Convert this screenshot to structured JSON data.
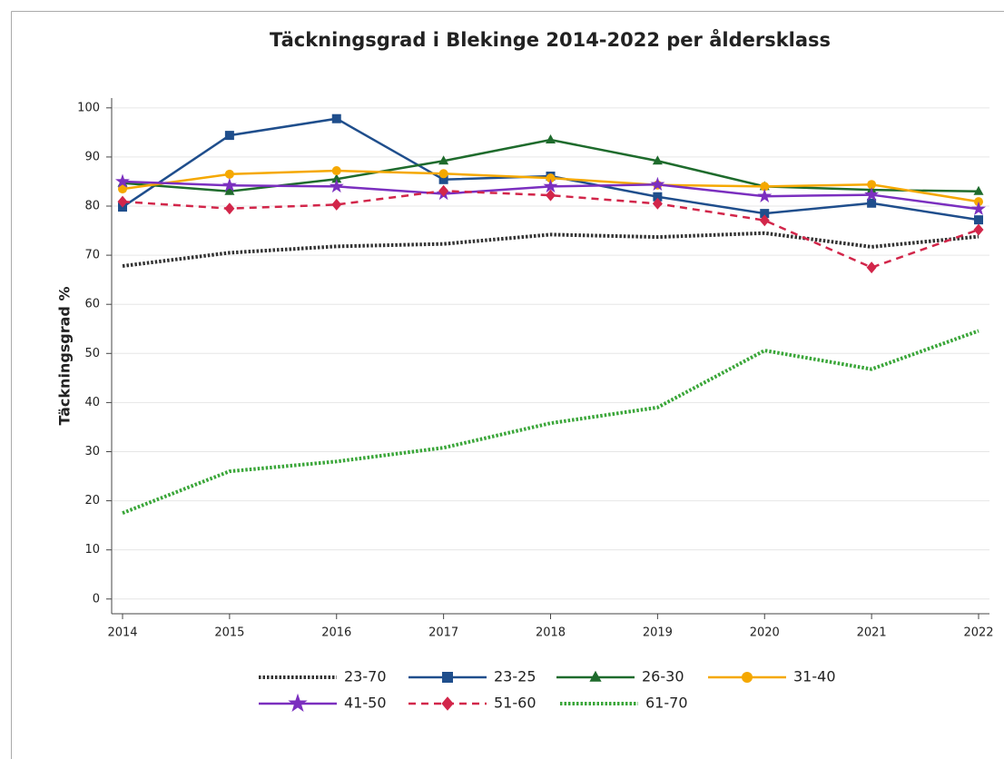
{
  "chart_data": {
    "type": "line",
    "title": "Täckningsgrad i Blekinge 2014-2022 per åldersklass",
    "y_label": "Täckningsgrad %",
    "categories": [
      "2014",
      "2015",
      "2016",
      "2017",
      "2018",
      "2019",
      "2020",
      "2021",
      "2022"
    ],
    "ylim": [
      -3,
      102
    ],
    "yticks": [
      0,
      10,
      20,
      30,
      40,
      50,
      60,
      70,
      80,
      90,
      100
    ],
    "grid": true,
    "series": [
      {
        "name": "23-70",
        "color": "#333333",
        "dash": "dotted",
        "marker": "none",
        "values": [
          67.8,
          70.5,
          71.8,
          72.3,
          74.2,
          73.7,
          74.5,
          71.7,
          73.8
        ]
      },
      {
        "name": "23-25",
        "color": "#1f4e8c",
        "dash": "solid",
        "marker": "square",
        "values": [
          79.8,
          94.4,
          97.8,
          85.4,
          86.1,
          81.9,
          78.5,
          80.6,
          77.2
        ]
      },
      {
        "name": "26-30",
        "color": "#1e6b2c",
        "dash": "solid",
        "marker": "triangle",
        "values": [
          84.7,
          83.0,
          85.5,
          89.2,
          93.5,
          89.2,
          84.0,
          83.3,
          83.0
        ]
      },
      {
        "name": "31-40",
        "color": "#f5a800",
        "dash": "solid",
        "marker": "circle",
        "values": [
          83.5,
          86.5,
          87.2,
          86.6,
          85.7,
          84.3,
          84.0,
          84.4,
          80.9
        ]
      },
      {
        "name": "41-50",
        "color": "#7b2fbf",
        "dash": "solid",
        "marker": "star",
        "values": [
          85.0,
          84.2,
          84.0,
          82.5,
          84.0,
          84.4,
          82.0,
          82.3,
          79.4
        ]
      },
      {
        "name": "51-60",
        "color": "#d2264a",
        "dash": "dashed",
        "marker": "diamond",
        "values": [
          80.9,
          79.5,
          80.3,
          83.1,
          82.2,
          80.5,
          77.1,
          67.5,
          75.2
        ]
      },
      {
        "name": "61-70",
        "color": "#3aa639",
        "dash": "dotted",
        "marker": "none",
        "values": [
          17.5,
          26.0,
          28.0,
          30.8,
          35.8,
          39.0,
          50.6,
          46.8,
          54.6
        ]
      }
    ]
  }
}
